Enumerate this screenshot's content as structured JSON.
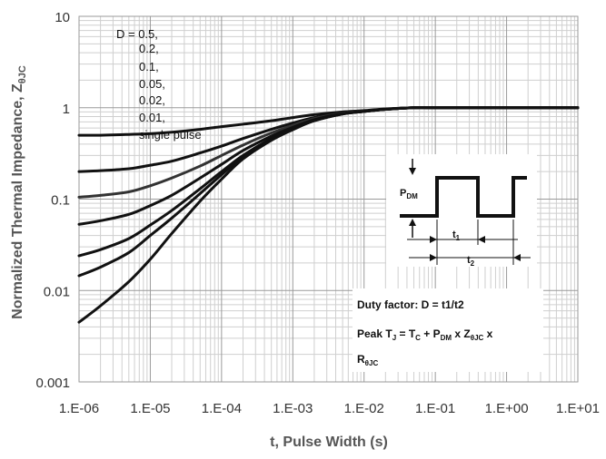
{
  "chart_data": {
    "type": "line",
    "title": "",
    "xlabel": "t, Pulse Width (s)",
    "ylabel": "Normalized Thermal Impedance, Z",
    "ylabel_sub": "θJC",
    "x_scale": "log",
    "y_scale": "log",
    "xlim": [
      1e-06,
      10
    ],
    "ylim": [
      0.001,
      10
    ],
    "x_ticks": [
      "1.E-06",
      "1.E-05",
      "1.E-04",
      "1.E-03",
      "1.E-02",
      "1.E-01",
      "1.E+00",
      "1.E+01"
    ],
    "y_ticks": [
      "0.001",
      "0.01",
      "0.1",
      "1",
      "10"
    ],
    "grid": true,
    "legend": {
      "placement": "top-left",
      "entries": [
        "D = 0.5,",
        "0.2,",
        "0.1,",
        "0.05,",
        "0.02,",
        "0.01,",
        "single pulse"
      ]
    },
    "x": [
      1e-06,
      2e-06,
      5e-06,
      1e-05,
      2e-05,
      5e-05,
      0.0001,
      0.0002,
      0.0005,
      0.001,
      0.002,
      0.005,
      0.01,
      0.02,
      0.05,
      0.1,
      1,
      10
    ],
    "series": [
      {
        "name": "0.5",
        "color": "#111111",
        "values": [
          0.5,
          0.5,
          0.51,
          0.52,
          0.54,
          0.58,
          0.62,
          0.66,
          0.72,
          0.78,
          0.84,
          0.9,
          0.93,
          0.97,
          1.0,
          1.0,
          1.0,
          1.0
        ]
      },
      {
        "name": "0.2",
        "color": "#111111",
        "values": [
          0.2,
          0.205,
          0.215,
          0.235,
          0.26,
          0.32,
          0.38,
          0.46,
          0.58,
          0.68,
          0.78,
          0.88,
          0.92,
          0.96,
          1.0,
          1.0,
          1.0,
          1.0
        ]
      },
      {
        "name": "0.1",
        "color": "#333333",
        "values": [
          0.105,
          0.11,
          0.12,
          0.14,
          0.17,
          0.23,
          0.3,
          0.39,
          0.53,
          0.64,
          0.76,
          0.87,
          0.92,
          0.96,
          1.0,
          1.0,
          1.0,
          1.0
        ]
      },
      {
        "name": "0.05",
        "color": "#111111",
        "values": [
          0.053,
          0.058,
          0.068,
          0.085,
          0.11,
          0.17,
          0.24,
          0.34,
          0.49,
          0.61,
          0.74,
          0.86,
          0.91,
          0.96,
          1.0,
          1.0,
          1.0,
          1.0
        ]
      },
      {
        "name": "0.02",
        "color": "#111111",
        "values": [
          0.024,
          0.028,
          0.037,
          0.052,
          0.075,
          0.13,
          0.2,
          0.3,
          0.46,
          0.59,
          0.73,
          0.86,
          0.91,
          0.96,
          1.0,
          1.0,
          1.0,
          1.0
        ]
      },
      {
        "name": "0.01",
        "color": "#111111",
        "values": [
          0.0145,
          0.018,
          0.026,
          0.04,
          0.062,
          0.115,
          0.185,
          0.29,
          0.45,
          0.58,
          0.72,
          0.855,
          0.91,
          0.96,
          1.0,
          1.0,
          1.0,
          1.0
        ]
      },
      {
        "name": "single pulse",
        "color": "#111111",
        "values": [
          0.0045,
          0.0068,
          0.0125,
          0.022,
          0.042,
          0.095,
          0.165,
          0.275,
          0.44,
          0.575,
          0.72,
          0.855,
          0.91,
          0.96,
          1.0,
          1.0,
          1.0,
          1.0
        ]
      }
    ],
    "inset": {
      "pdm_label": "P",
      "pdm_sub": "DM",
      "t1_label": "t",
      "t1_sub": "1",
      "t2_label": "t",
      "t2_sub": "2"
    },
    "note": {
      "line1": "Duty factor: D = t1/t2",
      "line2_a": "Peak T",
      "line2_a_sub": "J",
      "line2_b": " = T",
      "line2_b_sub": "C",
      "line2_c": " + P",
      "line2_c_sub": "DM",
      "line2_d": " x Z",
      "line2_d_sub": "θJC",
      "line2_e": " x",
      "line3": "R",
      "line3_sub": "θJC"
    }
  }
}
